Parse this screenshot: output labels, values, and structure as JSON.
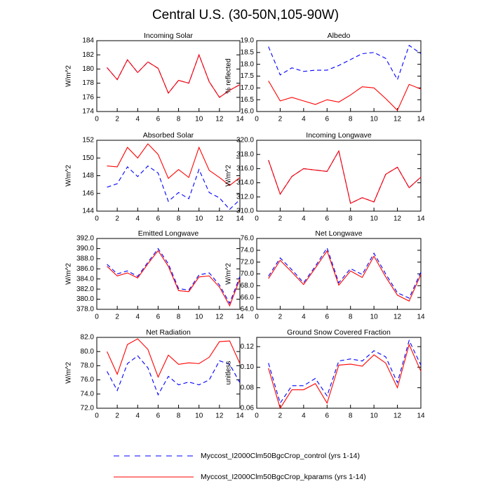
{
  "title": "Central U.S. (30-50N,105-90W)",
  "legend": [
    {
      "name": "Myccost_I2000Clm50BgcCrop_control (yrs 1-14)",
      "color": "#0000ff",
      "dashed": true
    },
    {
      "name": "Myccost_I2000Clm50BgcCrop_kparams (yrs 1-14)",
      "color": "#ff0000",
      "dashed": false
    }
  ],
  "chart_data": [
    {
      "type": "line",
      "title": "Incoming Solar",
      "ylabel": "W/m^2",
      "x": [
        1,
        2,
        3,
        4,
        5,
        6,
        7,
        8,
        9,
        10,
        11,
        12,
        13,
        14
      ],
      "xlim": [
        0,
        14
      ],
      "xticks": [
        0,
        2,
        4,
        6,
        8,
        10,
        12,
        14
      ],
      "ylim": [
        174,
        184
      ],
      "yticks": [
        174,
        176,
        178,
        180,
        182,
        184
      ],
      "series": [
        {
          "values": [
            180.2,
            178.5,
            181.3,
            179.5,
            181.0,
            180.1,
            176.6,
            178.4,
            178.0,
            182.0,
            178.2,
            176.0,
            177.0,
            177.8
          ]
        },
        {
          "values": [
            180.2,
            178.5,
            181.3,
            179.5,
            181.0,
            180.1,
            176.6,
            178.4,
            178.0,
            182.0,
            178.2,
            176.0,
            177.0,
            177.8
          ]
        }
      ]
    },
    {
      "type": "line",
      "title": "Albedo",
      "ylabel": "% reflected",
      "x": [
        1,
        2,
        3,
        4,
        5,
        6,
        7,
        8,
        9,
        10,
        11,
        12,
        13,
        14
      ],
      "xlim": [
        0,
        14
      ],
      "xticks": [
        0,
        2,
        4,
        6,
        8,
        10,
        12,
        14
      ],
      "ylim": [
        16,
        19
      ],
      "yticks": [
        {
          "value": 16,
          "label": "16.0"
        },
        {
          "value": 16.5,
          "label": "16.5"
        },
        {
          "value": 17,
          "label": "17.0"
        },
        {
          "value": 17.5,
          "label": "17.5"
        },
        {
          "value": 18,
          "label": "18.0"
        },
        {
          "value": 18.5,
          "label": "18.5"
        },
        {
          "value": 19,
          "label": "19.0"
        }
      ],
      "series": [
        {
          "values": [
            18.75,
            17.55,
            17.85,
            17.7,
            17.75,
            17.75,
            17.95,
            18.2,
            18.45,
            18.5,
            18.25,
            17.35,
            18.8,
            18.45
          ]
        },
        {
          "values": [
            17.3,
            16.45,
            16.6,
            16.45,
            16.3,
            16.5,
            16.4,
            16.7,
            17.05,
            17.0,
            16.55,
            16.05,
            17.15,
            16.95
          ]
        }
      ]
    },
    {
      "type": "line",
      "title": "Absorbed Solar",
      "ylabel": "W/m^2",
      "x": [
        1,
        2,
        3,
        4,
        5,
        6,
        7,
        8,
        9,
        10,
        11,
        12,
        13,
        14
      ],
      "xlim": [
        0,
        14
      ],
      "xticks": [
        0,
        2,
        4,
        6,
        8,
        10,
        12,
        14
      ],
      "ylim": [
        144,
        152
      ],
      "yticks": [
        144,
        146,
        148,
        150,
        152
      ],
      "series": [
        {
          "values": [
            146.7,
            147.1,
            149.0,
            147.9,
            149.1,
            148.3,
            145.1,
            146.1,
            145.4,
            148.7,
            146.1,
            145.5,
            144.2,
            145.3
          ]
        },
        {
          "values": [
            149.1,
            149.0,
            151.2,
            150.0,
            151.6,
            150.4,
            147.7,
            148.7,
            147.8,
            151.2,
            148.6,
            147.8,
            146.9,
            147.8
          ]
        }
      ]
    },
    {
      "type": "line",
      "title": "Incoming Longwave",
      "ylabel": "W/m^2",
      "x": [
        1,
        2,
        3,
        4,
        5,
        6,
        7,
        8,
        9,
        10,
        11,
        12,
        13,
        14
      ],
      "xlim": [
        0,
        14
      ],
      "xticks": [
        0,
        2,
        4,
        6,
        8,
        10,
        12,
        14
      ],
      "ylim": [
        310,
        320
      ],
      "yticks": [
        {
          "value": 310,
          "label": "310.0"
        },
        {
          "value": 312,
          "label": "312.0"
        },
        {
          "value": 314,
          "label": "314.0"
        },
        {
          "value": 316,
          "label": "316.0"
        },
        {
          "value": 318,
          "label": "318.0"
        },
        {
          "value": 320,
          "label": "320.0"
        }
      ],
      "series": [
        {
          "values": [
            317.2,
            312.4,
            314.9,
            316.0,
            315.8,
            315.6,
            318.5,
            311.1,
            311.9,
            311.3,
            315.2,
            316.2,
            313.3,
            314.8
          ]
        },
        {
          "values": [
            317.2,
            312.4,
            314.9,
            316.0,
            315.8,
            315.6,
            318.5,
            311.1,
            311.9,
            311.3,
            315.2,
            316.2,
            313.3,
            314.8
          ]
        }
      ]
    },
    {
      "type": "line",
      "title": "Emitted Longwave",
      "ylabel": "W/m^2",
      "x": [
        1,
        2,
        3,
        4,
        5,
        6,
        7,
        8,
        9,
        10,
        11,
        12,
        13,
        14
      ],
      "xlim": [
        0,
        14
      ],
      "xticks": [
        0,
        2,
        4,
        6,
        8,
        10,
        12,
        14
      ],
      "ylim": [
        378,
        392
      ],
      "yticks": [
        {
          "value": 378,
          "label": "378.0"
        },
        {
          "value": 380,
          "label": "380.0"
        },
        {
          "value": 382,
          "label": "382.0"
        },
        {
          "value": 384,
          "label": "384.0"
        },
        {
          "value": 386,
          "label": "386.0"
        },
        {
          "value": 388,
          "label": "388.0"
        },
        {
          "value": 390,
          "label": "390.0"
        },
        {
          "value": 392,
          "label": "392.0"
        }
      ],
      "series": [
        {
          "values": [
            386.9,
            385.0,
            385.6,
            384.5,
            387.3,
            390.0,
            387.0,
            382.1,
            381.8,
            384.8,
            385.2,
            382.8,
            379.2,
            384.5
          ]
        },
        {
          "values": [
            386.5,
            384.6,
            385.2,
            384.2,
            387.0,
            389.6,
            386.5,
            381.7,
            381.5,
            384.4,
            384.6,
            382.4,
            378.7,
            384.0
          ]
        }
      ]
    },
    {
      "type": "line",
      "title": "Net Longwave",
      "ylabel": "W/m^2",
      "x": [
        1,
        2,
        3,
        4,
        5,
        6,
        7,
        8,
        9,
        10,
        11,
        12,
        13,
        14
      ],
      "xlim": [
        0,
        14
      ],
      "xticks": [
        0,
        2,
        4,
        6,
        8,
        10,
        12,
        14
      ],
      "ylim": [
        64,
        76
      ],
      "yticks": [
        {
          "value": 64,
          "label": "64.0"
        },
        {
          "value": 66,
          "label": "66.0"
        },
        {
          "value": 68,
          "label": "68.0"
        },
        {
          "value": 70,
          "label": "70.0"
        },
        {
          "value": 72,
          "label": "72.0"
        },
        {
          "value": 74,
          "label": "74.0"
        },
        {
          "value": 76,
          "label": "76.0"
        }
      ],
      "series": [
        {
          "values": [
            69.6,
            72.7,
            70.7,
            68.5,
            71.3,
            74.4,
            68.5,
            70.9,
            69.9,
            73.5,
            70.0,
            66.8,
            65.9,
            70.3
          ]
        },
        {
          "values": [
            69.2,
            72.3,
            70.3,
            68.2,
            71.0,
            73.9,
            68.1,
            70.5,
            69.4,
            73.0,
            69.5,
            66.4,
            65.4,
            69.9
          ]
        }
      ]
    },
    {
      "type": "line",
      "title": "Net Radiation",
      "ylabel": "W/m^2",
      "x": [
        1,
        2,
        3,
        4,
        5,
        6,
        7,
        8,
        9,
        10,
        11,
        12,
        13,
        14
      ],
      "xlim": [
        0,
        14
      ],
      "xticks": [
        0,
        2,
        4,
        6,
        8,
        10,
        12,
        14
      ],
      "ylim": [
        72,
        82
      ],
      "yticks": [
        {
          "value": 72,
          "label": "72.0"
        },
        {
          "value": 74,
          "label": "74.0"
        },
        {
          "value": 76,
          "label": "76.0"
        },
        {
          "value": 78,
          "label": "78.0"
        },
        {
          "value": 80,
          "label": "80.0"
        },
        {
          "value": 82,
          "label": "82.0"
        }
      ],
      "series": [
        {
          "values": [
            77.2,
            74.5,
            78.3,
            79.4,
            77.7,
            73.9,
            76.5,
            75.3,
            75.7,
            75.3,
            76.0,
            78.7,
            78.2,
            75.6
          ]
        },
        {
          "values": [
            80.0,
            76.8,
            81.0,
            81.8,
            80.3,
            76.4,
            79.5,
            78.2,
            78.4,
            78.3,
            79.2,
            81.4,
            81.5,
            78.3
          ]
        }
      ]
    },
    {
      "type": "line",
      "title": "Ground Snow Covered Fraction",
      "ylabel": "unitless",
      "x": [
        1,
        2,
        3,
        4,
        5,
        6,
        7,
        8,
        9,
        10,
        11,
        12,
        13,
        14
      ],
      "xlim": [
        0,
        14
      ],
      "xticks": [
        0,
        2,
        4,
        6,
        8,
        10,
        12,
        14
      ],
      "ylim": [
        0.06,
        0.129
      ],
      "yticks": [
        0.06,
        0.08,
        {
          "value": 0.1,
          "label": "0.10"
        },
        0.12
      ],
      "series": [
        {
          "values": [
            0.104,
            0.065,
            0.082,
            0.082,
            0.089,
            0.072,
            0.106,
            0.108,
            0.106,
            0.116,
            0.11,
            0.085,
            0.126,
            0.102
          ]
        },
        {
          "values": [
            0.099,
            0.06,
            0.078,
            0.078,
            0.084,
            0.065,
            0.102,
            0.103,
            0.101,
            0.112,
            0.104,
            0.08,
            0.122,
            0.096
          ]
        }
      ]
    }
  ]
}
